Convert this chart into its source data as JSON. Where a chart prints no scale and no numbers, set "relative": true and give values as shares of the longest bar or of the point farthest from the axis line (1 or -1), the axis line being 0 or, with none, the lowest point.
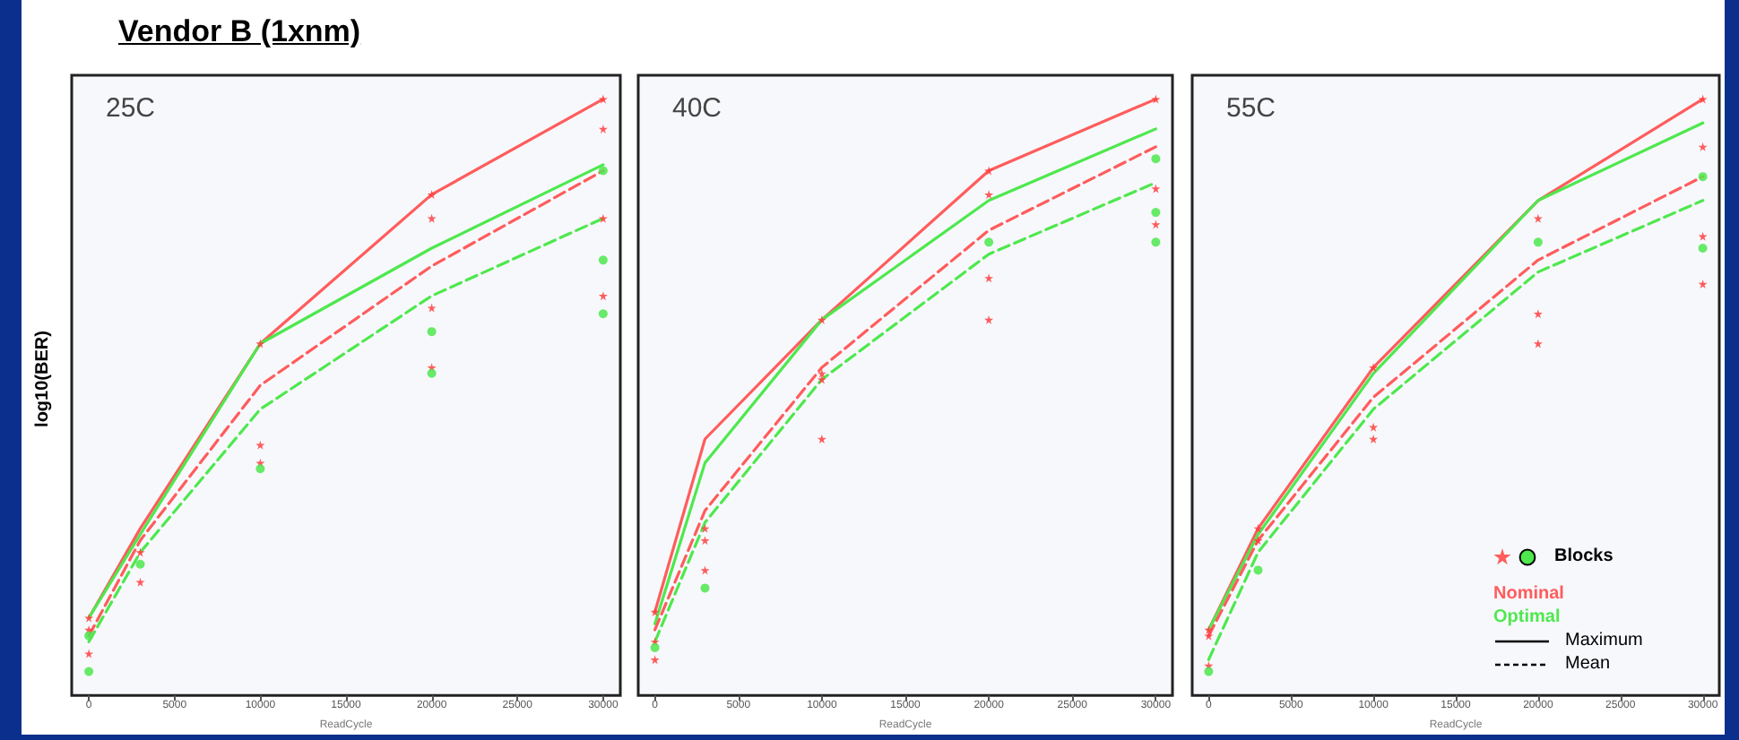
{
  "chart_data": [
    {
      "type": "line",
      "title": "Vendor B (1xnm)",
      "subtitle": "25C",
      "xlabel": "ReadCycle",
      "ylabel": "log10(BER)",
      "relative": true,
      "tick_labels": "x",
      "marker": "none",
      "xlim": [
        -1000,
        31000
      ],
      "xticks": [
        0,
        5000,
        10000,
        15000,
        20000,
        25000,
        30000
      ],
      "x": [
        0,
        3000,
        10000,
        20000,
        30000
      ],
      "series": [
        {
          "color": "#ff5c5c",
          "line_style": "solid",
          "values": [
            0.13,
            0.28,
            0.59,
            0.84,
            1.0
          ]
        },
        {
          "color": "#4ee84e",
          "line_style": "solid",
          "values": [
            0.13,
            0.27,
            0.59,
            0.75,
            0.89
          ]
        },
        {
          "color": "#ff5c5c",
          "line_style": "dashed",
          "values": [
            0.1,
            0.26,
            0.52,
            0.72,
            0.88
          ]
        },
        {
          "color": "#4ee84e",
          "line_style": "dashed",
          "values": [
            0.09,
            0.24,
            0.48,
            0.67,
            0.8
          ]
        },
        {
          "type": "scatter",
          "marker": "star",
          "color": "#ff4040",
          "x": [
            0,
            0,
            0,
            3000,
            3000,
            10000,
            10000,
            10000,
            20000,
            20000,
            20000,
            20000,
            30000,
            30000,
            30000,
            30000
          ],
          "values": [
            0.13,
            0.11,
            0.07,
            0.24,
            0.19,
            0.59,
            0.42,
            0.39,
            0.84,
            0.8,
            0.65,
            0.55,
            1.0,
            0.95,
            0.8,
            0.67
          ]
        },
        {
          "type": "scatter",
          "marker": "circle",
          "color": "#4ee84e",
          "x": [
            0,
            0,
            3000,
            10000,
            20000,
            20000,
            30000,
            30000,
            30000
          ],
          "values": [
            0.04,
            0.1,
            0.22,
            0.38,
            0.61,
            0.54,
            0.88,
            0.73,
            0.64
          ]
        }
      ]
    },
    {
      "type": "line",
      "title": "40C",
      "xlabel": "ReadCycle",
      "relative": true,
      "tick_labels": "x",
      "marker": "none",
      "xlim": [
        -1000,
        31000
      ],
      "xticks": [
        0,
        5000,
        10000,
        15000,
        20000,
        25000,
        30000
      ],
      "x": [
        0,
        3000,
        10000,
        20000,
        30000
      ],
      "series": [
        {
          "color": "#ff5c5c",
          "line_style": "solid",
          "values": [
            0.14,
            0.43,
            0.63,
            0.88,
            1.0
          ]
        },
        {
          "color": "#4ee84e",
          "line_style": "solid",
          "values": [
            0.12,
            0.39,
            0.63,
            0.83,
            0.95
          ]
        },
        {
          "color": "#ff5c5c",
          "line_style": "dashed",
          "values": [
            0.11,
            0.31,
            0.55,
            0.78,
            0.92
          ]
        },
        {
          "color": "#4ee84e",
          "line_style": "dashed",
          "values": [
            0.09,
            0.29,
            0.53,
            0.74,
            0.86
          ]
        },
        {
          "type": "scatter",
          "marker": "star",
          "color": "#ff4040",
          "x": [
            0,
            0,
            0,
            3000,
            3000,
            3000,
            10000,
            10000,
            10000,
            10000,
            20000,
            20000,
            20000,
            20000,
            30000,
            30000,
            30000
          ],
          "values": [
            0.14,
            0.09,
            0.06,
            0.28,
            0.26,
            0.21,
            0.63,
            0.54,
            0.53,
            0.43,
            0.88,
            0.84,
            0.7,
            0.63,
            1.0,
            0.85,
            0.79
          ]
        },
        {
          "type": "scatter",
          "marker": "circle",
          "color": "#4ee84e",
          "x": [
            0,
            3000,
            20000,
            30000,
            30000,
            30000
          ],
          "values": [
            0.08,
            0.18,
            0.76,
            0.9,
            0.81,
            0.76
          ]
        }
      ]
    },
    {
      "type": "line",
      "title": "55C",
      "xlabel": "ReadCycle",
      "relative": true,
      "tick_labels": "x",
      "marker": "none",
      "xlim": [
        -1000,
        31000
      ],
      "xticks": [
        0,
        5000,
        10000,
        15000,
        20000,
        25000,
        30000
      ],
      "x": [
        0,
        3000,
        10000,
        20000,
        30000
      ],
      "annotations": [
        "Blocks",
        "Nominal",
        "Optimal",
        "Maximum",
        "Mean"
      ],
      "series": [
        {
          "color": "#ff5c5c",
          "line_style": "solid",
          "values": [
            0.11,
            0.28,
            0.55,
            0.83,
            1.0
          ]
        },
        {
          "color": "#4ee84e",
          "line_style": "solid",
          "values": [
            0.11,
            0.27,
            0.54,
            0.83,
            0.96
          ]
        },
        {
          "color": "#ff5c5c",
          "line_style": "dashed",
          "values": [
            0.1,
            0.26,
            0.5,
            0.73,
            0.87
          ]
        },
        {
          "color": "#4ee84e",
          "line_style": "dashed",
          "values": [
            0.06,
            0.24,
            0.48,
            0.71,
            0.83
          ]
        },
        {
          "type": "scatter",
          "marker": "star",
          "color": "#ff4040",
          "x": [
            0,
            0,
            0,
            3000,
            3000,
            10000,
            10000,
            10000,
            20000,
            20000,
            20000,
            30000,
            30000,
            30000,
            30000
          ],
          "values": [
            0.11,
            0.1,
            0.05,
            0.28,
            0.26,
            0.55,
            0.45,
            0.43,
            0.8,
            0.64,
            0.59,
            1.0,
            0.92,
            0.77,
            0.69
          ]
        },
        {
          "type": "scatter",
          "marker": "circle",
          "color": "#4ee84e",
          "x": [
            0,
            3000,
            20000,
            30000,
            30000
          ],
          "values": [
            0.04,
            0.21,
            0.76,
            0.87,
            0.75
          ]
        }
      ]
    }
  ]
}
